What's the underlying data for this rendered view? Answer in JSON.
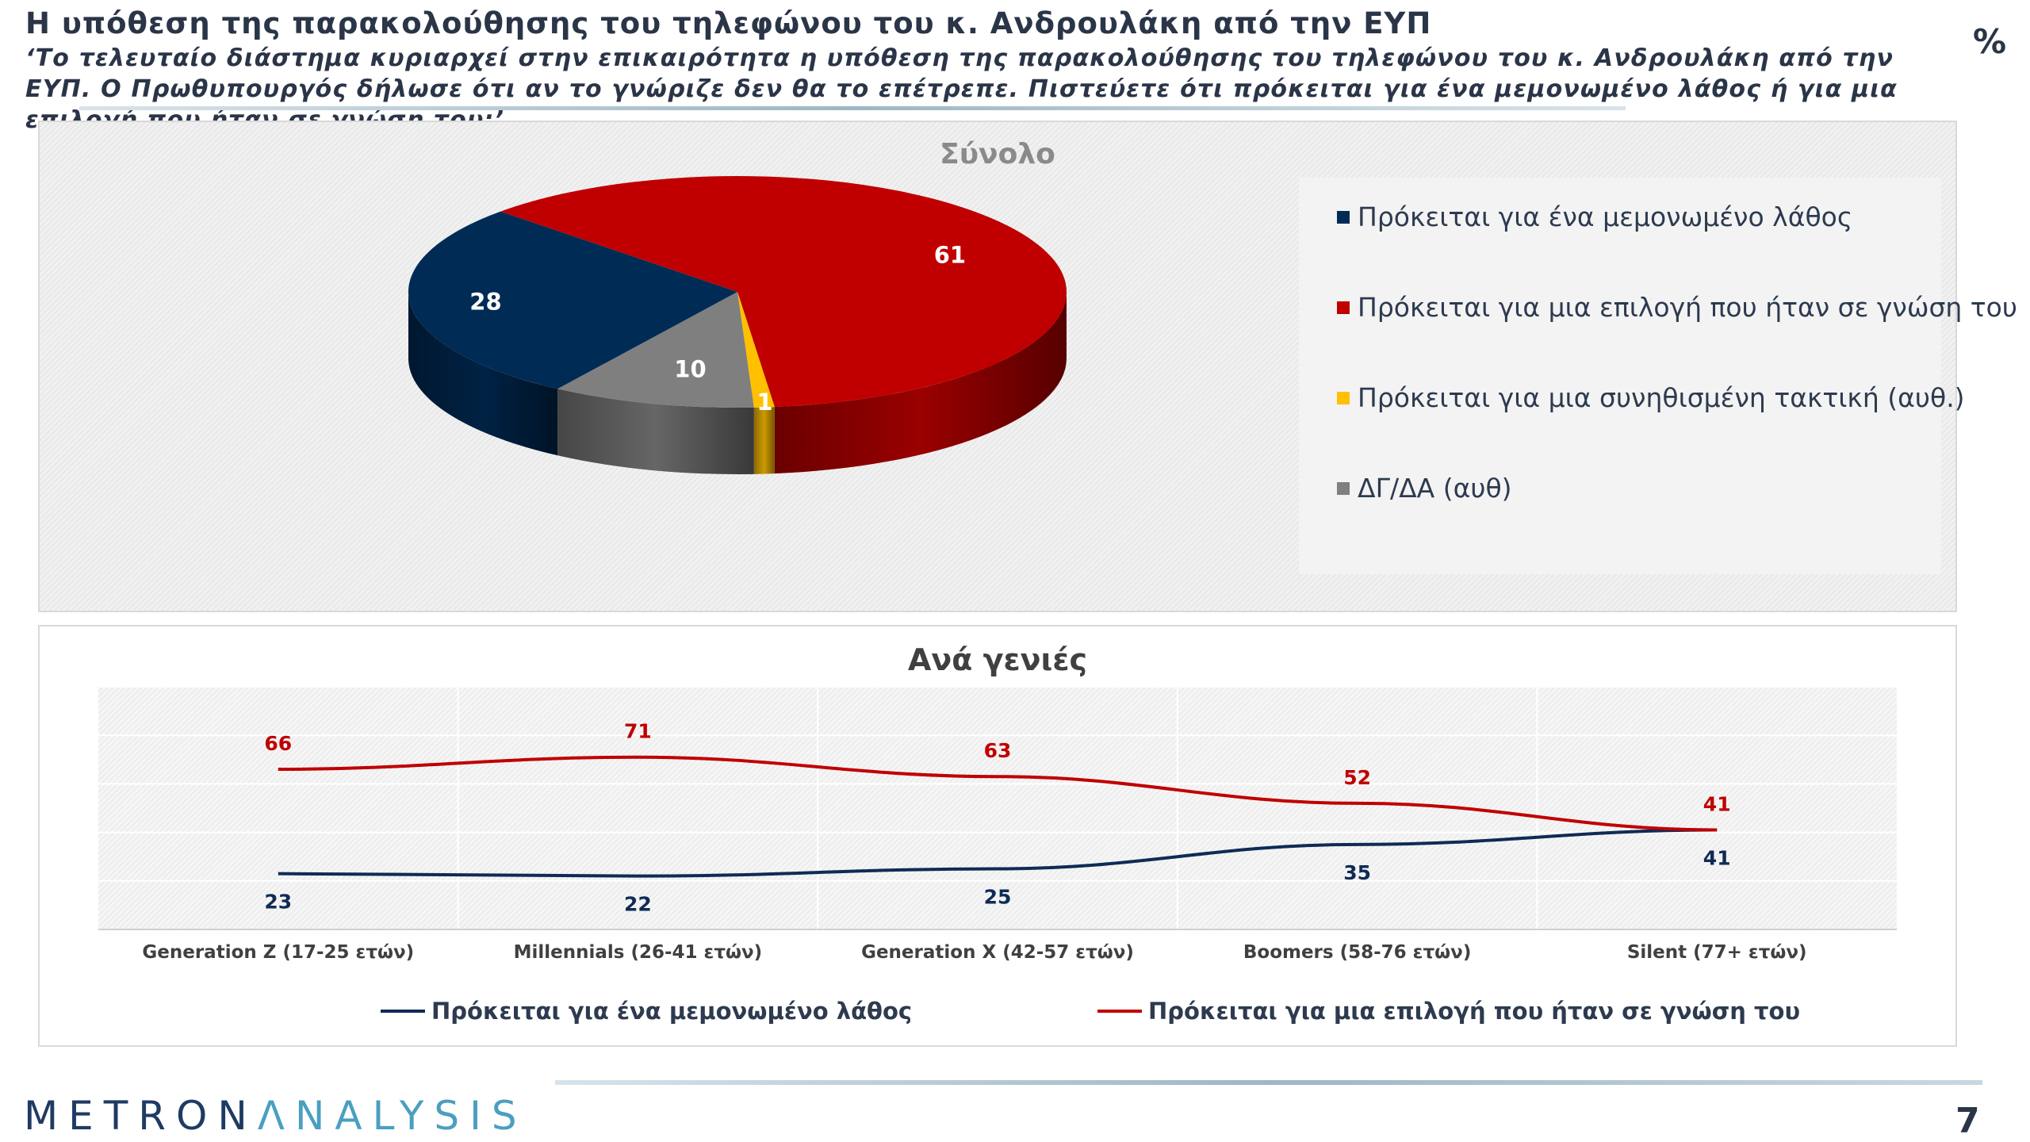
{
  "header": {
    "title": "Η υπόθεση της παρακολούθησης του τηλεφώνου του κ. Ανδρουλάκη από την ΕΥΠ",
    "subtitle": "‘Το τελευταίο διάστημα κυριαρχεί στην επικαιρότητα η υπόθεση της παρακολούθησης του τηλεφώνου του κ. Ανδρουλάκη από την ΕΥΠ. Ο Πρωθυπουργός δήλωσε ότι αν το γνώριζε δεν θα το επέτρεπε. Πιστεύετε ότι πρόκειται για ένα μεμονωμένο λάθος ή για μια επιλογή που ήταν σε γνώση του;’",
    "unit_symbol": "%"
  },
  "footer": {
    "logo_part1": "METRON",
    "logo_part2": "Λ",
    "logo_part3": "NALYSIS",
    "page_number": "7"
  },
  "chart_data": [
    {
      "type": "pie",
      "title": "Σύνολο",
      "slices": [
        {
          "label": "Πρόκειται για ένα μεμονωμένο λάθος",
          "value": 28,
          "color": "#002b55"
        },
        {
          "label": "Πρόκειται για μια επιλογή που ήταν σε γνώση του",
          "value": 61,
          "color": "#c00000"
        },
        {
          "label": "Πρόκειται για μια συνηθισμένη τακτική (αυθ.)",
          "value": 1,
          "color": "#ffc000"
        },
        {
          "label": "ΔΓ/ΔΑ (αυθ)",
          "value": 10,
          "color": "#7f7f7f"
        }
      ],
      "legend_position": "right",
      "three_d": true
    },
    {
      "type": "line",
      "title": "Ανά γενιές",
      "categories": [
        "Generation Z (17-25 ετών)",
        "Millennials (26-41 ετών)",
        "Generation X (42-57 ετών)",
        "Boomers (58-76 ετών)",
        "Silent (77+ ετών)"
      ],
      "series": [
        {
          "name": "Πρόκειται για ένα μεμονωμένο λάθος",
          "values": [
            23,
            22,
            25,
            35,
            41
          ],
          "color": "#0f2b55"
        },
        {
          "name": "Πρόκειται για μια  επιλογή που ήταν σε γνώση του",
          "values": [
            66,
            71,
            63,
            52,
            41
          ],
          "color": "#c00000"
        }
      ],
      "ylim": [
        0,
        100
      ],
      "grid": true,
      "legend_position": "bottom"
    }
  ]
}
